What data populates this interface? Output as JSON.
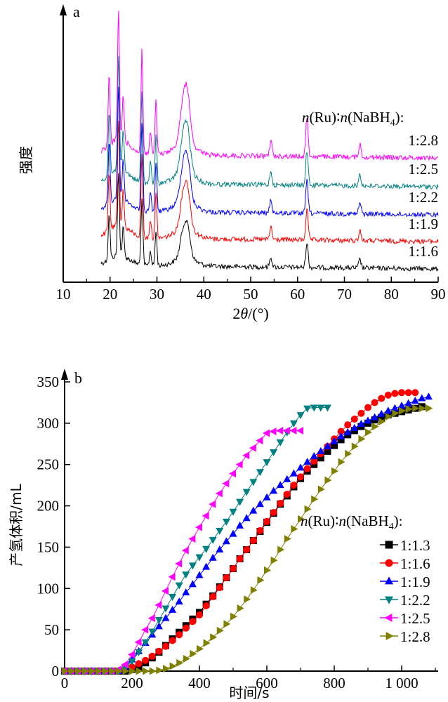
{
  "chart_data": [
    {
      "type": "line",
      "panel_label": "a",
      "ylabel": "强度",
      "xlabel_prefix": "2",
      "xlabel_theta": "θ",
      "xlabel_suffix": "/(°)",
      "xlim": [
        10,
        90
      ],
      "xticks": [
        10,
        20,
        30,
        40,
        50,
        60,
        70,
        80,
        90
      ],
      "yticks": [],
      "legend_title": "n(Ru)∶n(NaBH4)",
      "peaks": [
        {
          "x": 19.8,
          "rel": 0.55
        },
        {
          "x": 21.8,
          "rel": 1.0
        },
        {
          "x": 22.8,
          "rel": 0.35
        },
        {
          "x": 26.8,
          "rel": 0.8
        },
        {
          "x": 28.6,
          "rel": 0.18
        },
        {
          "x": 29.8,
          "rel": 0.42
        },
        {
          "x": 35.5,
          "rel": 0.25
        },
        {
          "x": 36.5,
          "rel": 0.35
        },
        {
          "x": 54.3,
          "rel": 0.12
        },
        {
          "x": 62.0,
          "rel": 0.3
        },
        {
          "x": 73.3,
          "rel": 0.1
        }
      ],
      "series": [
        {
          "name": "1:1.6",
          "color": "#000000"
        },
        {
          "name": "1:1.9",
          "color": "#ff0000"
        },
        {
          "name": "1:2.2",
          "color": "#0000ff"
        },
        {
          "name": "1:2.5",
          "color": "#008080"
        },
        {
          "name": "1:2.8",
          "color": "#ff00ff"
        }
      ]
    },
    {
      "type": "line",
      "panel_label": "b",
      "ylabel": "产氢体积/mL",
      "xlabel": "时间/s",
      "xlim": [
        0,
        1100
      ],
      "ylim": [
        0,
        350
      ],
      "xticks": [
        0,
        200,
        400,
        600,
        800,
        1000
      ],
      "xtick_labels": [
        "0",
        "200",
        "400",
        "600",
        "800",
        "1 000"
      ],
      "yticks": [
        0,
        50,
        100,
        150,
        200,
        250,
        300,
        350
      ],
      "legend_title": "n(Ru)∶n(NaBH4)",
      "series": [
        {
          "name": "1:1.3",
          "color": "#000000",
          "marker": "square",
          "x": [
            0,
            20,
            40,
            60,
            80,
            100,
            120,
            140,
            160,
            180,
            200,
            220,
            240,
            260,
            280,
            300,
            320,
            340,
            360,
            380,
            400,
            420,
            440,
            460,
            480,
            500,
            520,
            540,
            560,
            580,
            600,
            620,
            640,
            660,
            680,
            700,
            720,
            740,
            760,
            780,
            800,
            820,
            840,
            860,
            880,
            900,
            920,
            940,
            960,
            980,
            1000,
            1020,
            1040,
            1060
          ],
          "y": [
            0,
            0,
            0,
            0,
            0,
            0,
            0,
            0,
            0,
            0,
            2,
            5,
            10,
            16,
            23,
            31,
            39,
            47,
            55,
            63,
            71,
            81,
            91,
            102,
            113,
            124,
            136,
            147,
            158,
            169,
            180,
            191,
            202,
            212,
            223,
            233,
            242,
            250,
            258,
            266,
            273,
            280,
            286,
            291,
            296,
            300,
            304,
            307,
            310,
            312,
            314,
            316,
            318,
            320
          ]
        },
        {
          "name": "1:1.6",
          "color": "#ff0000",
          "marker": "circle",
          "x": [
            0,
            20,
            40,
            60,
            80,
            100,
            120,
            140,
            160,
            180,
            200,
            220,
            240,
            260,
            280,
            300,
            320,
            340,
            360,
            380,
            400,
            420,
            440,
            460,
            480,
            500,
            520,
            540,
            560,
            580,
            600,
            620,
            640,
            660,
            680,
            700,
            720,
            740,
            760,
            780,
            800,
            820,
            840,
            860,
            880,
            900,
            920,
            940,
            960,
            980,
            1000,
            1020,
            1040
          ],
          "y": [
            0,
            0,
            0,
            0,
            0,
            0,
            0,
            0,
            0,
            2,
            5,
            9,
            13,
            18,
            24,
            30,
            37,
            44,
            52,
            60,
            68,
            79,
            90,
            101,
            113,
            124,
            136,
            147,
            158,
            170,
            181,
            192,
            203,
            214,
            225,
            235,
            245,
            254,
            263,
            272,
            281,
            290,
            298,
            305,
            312,
            319,
            325,
            330,
            334,
            336,
            337,
            337,
            337
          ]
        },
        {
          "name": "1:1.9",
          "color": "#0000ff",
          "marker": "triangle-up",
          "x": [
            0,
            20,
            40,
            60,
            80,
            100,
            120,
            140,
            160,
            180,
            200,
            220,
            240,
            260,
            280,
            300,
            320,
            340,
            360,
            380,
            400,
            420,
            440,
            460,
            480,
            500,
            520,
            540,
            560,
            580,
            600,
            620,
            640,
            660,
            680,
            700,
            720,
            740,
            760,
            780,
            800,
            820,
            840,
            860,
            880,
            900,
            920,
            940,
            960,
            980,
            1000,
            1020,
            1040,
            1060,
            1080
          ],
          "y": [
            0,
            0,
            0,
            0,
            0,
            0,
            0,
            0,
            0,
            5,
            14,
            24,
            34,
            44,
            54,
            64,
            74,
            84,
            95,
            105,
            116,
            126,
            137,
            147,
            157,
            166,
            176,
            185,
            194,
            202,
            210,
            218,
            225,
            232,
            239,
            246,
            253,
            260,
            266,
            272,
            278,
            284,
            289,
            294,
            299,
            303,
            307,
            311,
            315,
            318,
            321,
            324,
            327,
            330,
            332
          ]
        },
        {
          "name": "1:2.2",
          "color": "#008080",
          "marker": "triangle-down",
          "x": [
            0,
            20,
            40,
            60,
            80,
            100,
            120,
            140,
            160,
            180,
            200,
            220,
            240,
            260,
            280,
            300,
            320,
            340,
            360,
            380,
            400,
            420,
            440,
            460,
            480,
            500,
            520,
            540,
            560,
            580,
            600,
            620,
            640,
            660,
            680,
            700,
            720,
            740,
            760,
            780
          ],
          "y": [
            0,
            0,
            0,
            0,
            0,
            0,
            0,
            0,
            0,
            4,
            12,
            23,
            35,
            48,
            62,
            76,
            90,
            104,
            117,
            128,
            138,
            148,
            159,
            170,
            181,
            193,
            205,
            217,
            229,
            241,
            253,
            265,
            277,
            289,
            300,
            310,
            318,
            319,
            319,
            319
          ]
        },
        {
          "name": "1:2.5",
          "color": "#ff00ff",
          "marker": "triangle-left",
          "x": [
            0,
            20,
            40,
            60,
            80,
            100,
            120,
            140,
            160,
            180,
            200,
            220,
            240,
            260,
            280,
            300,
            320,
            340,
            360,
            380,
            400,
            420,
            440,
            460,
            480,
            500,
            520,
            540,
            560,
            580,
            600,
            620,
            640,
            660,
            680,
            700
          ],
          "y": [
            0,
            0,
            0,
            0,
            0,
            0,
            0,
            0,
            2,
            8,
            20,
            35,
            50,
            64,
            80,
            97,
            114,
            130,
            146,
            160,
            174,
            188,
            202,
            215,
            227,
            239,
            250,
            261,
            270,
            279,
            288,
            290,
            291,
            291,
            291,
            291
          ]
        },
        {
          "name": "1:2.8",
          "color": "#808000",
          "marker": "triangle-right",
          "x": [
            0,
            20,
            40,
            60,
            80,
            100,
            120,
            140,
            160,
            180,
            200,
            220,
            240,
            260,
            280,
            300,
            320,
            340,
            360,
            380,
            400,
            420,
            440,
            460,
            480,
            500,
            520,
            540,
            560,
            580,
            600,
            620,
            640,
            660,
            680,
            700,
            720,
            740,
            760,
            780,
            800,
            820,
            840,
            860,
            880,
            900,
            920,
            940,
            960,
            980,
            1000,
            1020,
            1040,
            1060,
            1080
          ],
          "y": [
            0,
            0,
            0,
            0,
            0,
            0,
            0,
            0,
            0,
            0,
            0,
            0,
            0,
            0,
            1,
            3,
            6,
            10,
            15,
            21,
            27,
            34,
            41,
            49,
            57,
            66,
            76,
            87,
            98,
            110,
            122,
            134,
            147,
            160,
            172,
            184,
            196,
            208,
            220,
            231,
            242,
            253,
            263,
            272,
            281,
            289,
            296,
            302,
            308,
            312,
            315,
            317,
            318,
            318,
            318
          ]
        }
      ]
    }
  ]
}
